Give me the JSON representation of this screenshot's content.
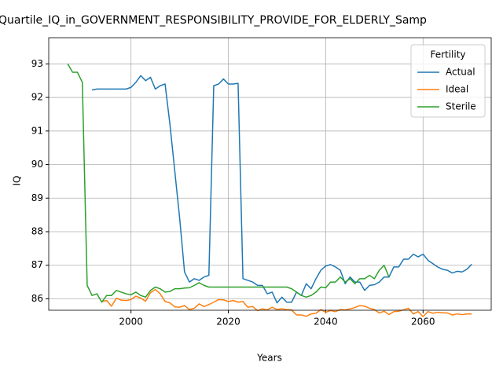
{
  "chart_data": {
    "type": "line",
    "title": "Quartile_IQ_in_GOVERNMENT_RESPONSIBILITY_PROVIDE_FOR_ELDERLY_Samp",
    "xlabel": "Years",
    "ylabel": "IQ",
    "legend_title": "Fertility",
    "legend": "upper right",
    "grid": true,
    "x": [
      1987,
      1988,
      1989,
      1990,
      1991,
      1992,
      1993,
      1994,
      1995,
      1996,
      1997,
      1998,
      1999,
      2000,
      2001,
      2002,
      2003,
      2004,
      2005,
      2006,
      2007,
      2008,
      2009,
      2010,
      2011,
      2012,
      2013,
      2014,
      2015,
      2016,
      2017,
      2018,
      2019,
      2020,
      2021,
      2022,
      2023,
      2024,
      2025,
      2026,
      2027,
      2028,
      2029,
      2030,
      2031,
      2032,
      2033,
      2034,
      2035,
      2036,
      2037,
      2038,
      2039,
      2040,
      2041,
      2042,
      2043,
      2044,
      2045,
      2046,
      2047,
      2048,
      2049,
      2050,
      2051,
      2052,
      2053,
      2054,
      2055,
      2056,
      2057,
      2058,
      2059,
      2060,
      2061,
      2062,
      2063,
      2064,
      2065,
      2066,
      2067,
      2068,
      2069,
      2070
    ],
    "series": [
      {
        "name": "Actual",
        "color": "#1f77b4",
        "values": [
          null,
          null,
          null,
          null,
          null,
          92.22,
          92.25,
          92.25,
          92.25,
          92.25,
          92.25,
          92.25,
          92.25,
          92.3,
          92.45,
          92.65,
          92.5,
          92.6,
          92.25,
          92.35,
          92.4,
          91.2,
          89.8,
          88.4,
          86.8,
          86.5,
          86.6,
          86.55,
          86.65,
          86.7,
          92.35,
          92.4,
          92.55,
          92.4,
          92.4,
          92.42,
          86.6,
          86.55,
          86.5,
          86.4,
          86.4,
          86.15,
          86.2,
          85.88,
          86.05,
          85.9,
          85.9,
          86.2,
          86.1,
          86.45,
          86.3,
          86.6,
          86.85,
          86.98,
          87.02,
          86.95,
          86.85,
          86.45,
          86.65,
          86.5,
          86.5,
          86.25,
          86.4,
          86.42,
          86.5,
          86.65,
          86.65,
          86.95,
          86.95,
          87.18,
          87.18,
          87.33,
          87.25,
          87.33,
          87.15,
          87.05,
          86.95,
          86.88,
          86.85,
          86.77,
          86.82,
          86.8,
          86.88,
          87.03
        ]
      },
      {
        "name": "Ideal",
        "color": "#ff7f0e",
        "values": [
          null,
          null,
          null,
          null,
          null,
          null,
          null,
          85.92,
          85.95,
          85.78,
          86.02,
          85.96,
          85.95,
          85.98,
          86.08,
          86.02,
          85.93,
          86.18,
          86.28,
          86.15,
          85.92,
          85.88,
          85.76,
          85.75,
          85.8,
          85.68,
          85.72,
          85.85,
          85.77,
          85.83,
          85.9,
          85.98,
          85.97,
          85.92,
          85.95,
          85.9,
          85.92,
          85.75,
          85.77,
          85.65,
          85.7,
          85.67,
          85.75,
          85.68,
          85.7,
          85.68,
          85.67,
          85.52,
          85.52,
          85.48,
          85.55,
          85.57,
          85.68,
          85.6,
          85.65,
          85.62,
          85.68,
          85.67,
          85.7,
          85.74,
          85.8,
          85.78,
          85.72,
          85.68,
          85.58,
          85.63,
          85.53,
          85.62,
          85.63,
          85.67,
          85.72,
          85.55,
          85.62,
          85.47,
          85.62,
          85.57,
          85.6,
          85.58,
          85.58,
          85.52,
          85.55,
          85.53,
          85.55,
          85.55
        ]
      },
      {
        "name": "Sterile",
        "color": "#2ca02c",
        "values": [
          93.0,
          92.75,
          92.75,
          92.45,
          86.4,
          86.1,
          86.15,
          85.9,
          86.1,
          86.1,
          86.25,
          86.2,
          86.15,
          86.12,
          86.2,
          86.1,
          86.05,
          86.25,
          86.35,
          86.3,
          86.2,
          86.22,
          86.3,
          86.3,
          86.32,
          86.33,
          86.4,
          86.48,
          86.4,
          86.35,
          86.35,
          86.35,
          86.35,
          86.35,
          86.35,
          86.35,
          86.35,
          86.35,
          86.35,
          86.35,
          86.35,
          86.35,
          86.35,
          86.35,
          86.35,
          86.35,
          86.3,
          86.2,
          86.1,
          86.05,
          86.1,
          86.2,
          86.35,
          86.33,
          86.5,
          86.5,
          86.65,
          86.5,
          86.6,
          86.45,
          86.6,
          86.6,
          86.7,
          86.6,
          86.85,
          87.0,
          86.65,
          null,
          null,
          null,
          null,
          null,
          null,
          null,
          null,
          null,
          null,
          null,
          null,
          null,
          null,
          null,
          null,
          null
        ]
      }
    ],
    "xlim": [
      1983.1,
      2074
    ],
    "xticks": [
      2000,
      2020,
      2040,
      2060
    ],
    "ylim": [
      85.66,
      93.78
    ],
    "yticks": [
      86,
      87,
      88,
      89,
      90,
      91,
      92,
      93
    ]
  }
}
